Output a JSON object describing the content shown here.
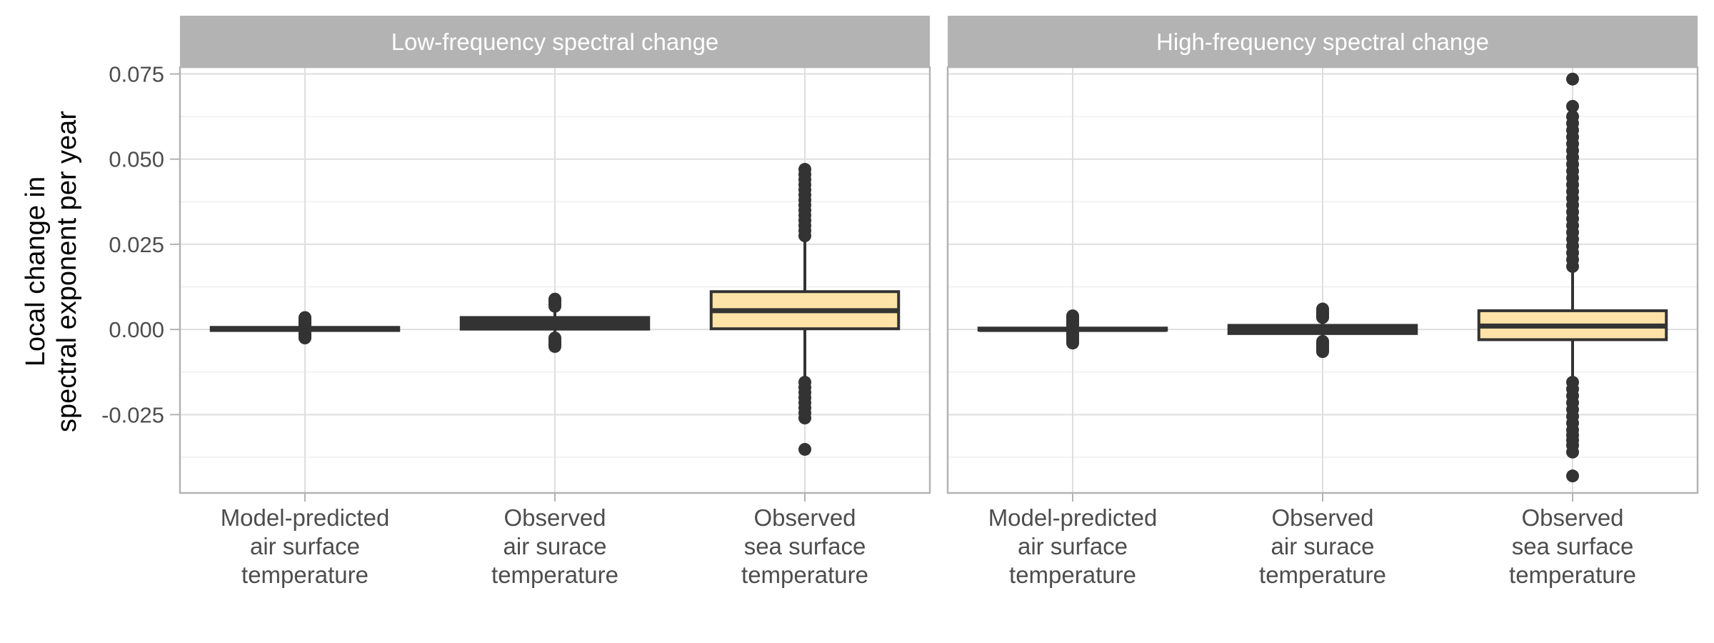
{
  "chart_data": {
    "type": "boxplot",
    "ylabel": [
      "Local change in",
      "spectral exponent per year"
    ],
    "ylim": [
      -0.048,
      0.077
    ],
    "yticks": [
      0.075,
      0.05,
      0.025,
      0.0,
      -0.025
    ],
    "ytick_labels": [
      "0.075",
      "0.050",
      "0.025",
      "0.000",
      "-0.025"
    ],
    "categories": [
      [
        "Model-predicted",
        "air surface",
        "temperature"
      ],
      [
        "Observed",
        "air surace",
        "temperature"
      ],
      [
        "Observed",
        "sea surface",
        "temperature"
      ]
    ],
    "grid": true,
    "colors": {
      "strip": "#b3b3b3",
      "box_highlight": "#fde3a7",
      "box_dark": "#333333",
      "border": "#b3b3b3",
      "grid_major": "#dedede",
      "grid_minor": "#efefef"
    },
    "panels": [
      {
        "title": "Low-frequency spectral change",
        "boxes": [
          {
            "q1": -0.0003,
            "median": 0.0001,
            "q3": 0.0006,
            "whisker_low": -0.0008,
            "whisker_high": 0.001,
            "fill": "#333333",
            "outliers": [
              0.0011,
              0.0014,
              0.0018,
              0.0022,
              0.0026,
              0.0029,
              0.0032,
              0.0035,
              -0.001,
              -0.0013,
              -0.0016,
              -0.0019,
              -0.0022,
              -0.0025
            ]
          },
          {
            "q1": 0.0001,
            "median": 0.0017,
            "q3": 0.0035,
            "whisker_low": -0.002,
            "whisker_high": 0.0062,
            "fill": "#333333",
            "outliers": [
              0.0068,
              0.0074,
              0.0079,
              0.0084,
              0.0089,
              -0.0025,
              -0.003,
              -0.0035,
              -0.004,
              -0.0045,
              -0.005
            ]
          },
          {
            "q1": 0.0002,
            "median": 0.0055,
            "q3": 0.0111,
            "whisker_low": -0.0145,
            "whisker_high": 0.027,
            "fill": "#fde3a7",
            "outliers": [
              0.0275,
              0.029,
              0.0305,
              0.032,
              0.0335,
              0.035,
              0.0365,
              0.038,
              0.0395,
              0.041,
              0.0425,
              0.044,
              0.0455,
              0.047,
              -0.0155,
              -0.017,
              -0.0185,
              -0.02,
              -0.0215,
              -0.023,
              -0.0245,
              -0.026,
              -0.0352
            ]
          }
        ]
      },
      {
        "title": "High-frequency spectral change",
        "boxes": [
          {
            "q1": -0.0002,
            "median": 0.0,
            "q3": 0.0004,
            "whisker_low": -0.0008,
            "whisker_high": 0.001,
            "fill": "#333333",
            "outliers": [
              0.0012,
              0.0016,
              0.002,
              0.0025,
              0.003,
              0.0035,
              0.004,
              -0.001,
              -0.0015,
              -0.002,
              -0.0025,
              -0.003,
              -0.0035,
              -0.004
            ]
          },
          {
            "q1": -0.0012,
            "median": -0.0002,
            "q3": 0.0012,
            "whisker_low": -0.003,
            "whisker_high": 0.003,
            "fill": "#333333",
            "outliers": [
              0.0035,
              0.004,
              0.0045,
              0.005,
              0.0055,
              0.006,
              -0.0035,
              -0.004,
              -0.0045,
              -0.005,
              -0.0055,
              -0.006,
              -0.0065
            ]
          },
          {
            "q1": -0.003,
            "median": 0.001,
            "q3": 0.0055,
            "whisker_low": -0.015,
            "whisker_high": 0.018,
            "fill": "#fde3a7",
            "outliers": [
              0.0185,
              0.0205,
              0.0225,
              0.0245,
              0.0265,
              0.0285,
              0.0305,
              0.0325,
              0.0345,
              0.0365,
              0.0385,
              0.0405,
              0.0425,
              0.0445,
              0.0465,
              0.0485,
              0.0505,
              0.0525,
              0.0545,
              0.0565,
              0.0585,
              0.0605,
              0.0625,
              0.0655,
              0.0735,
              -0.0155,
              -0.0175,
              -0.0195,
              -0.0215,
              -0.0235,
              -0.0255,
              -0.0275,
              -0.0295,
              -0.031,
              -0.0325,
              -0.034,
              -0.036,
              -0.043
            ]
          }
        ]
      }
    ]
  }
}
